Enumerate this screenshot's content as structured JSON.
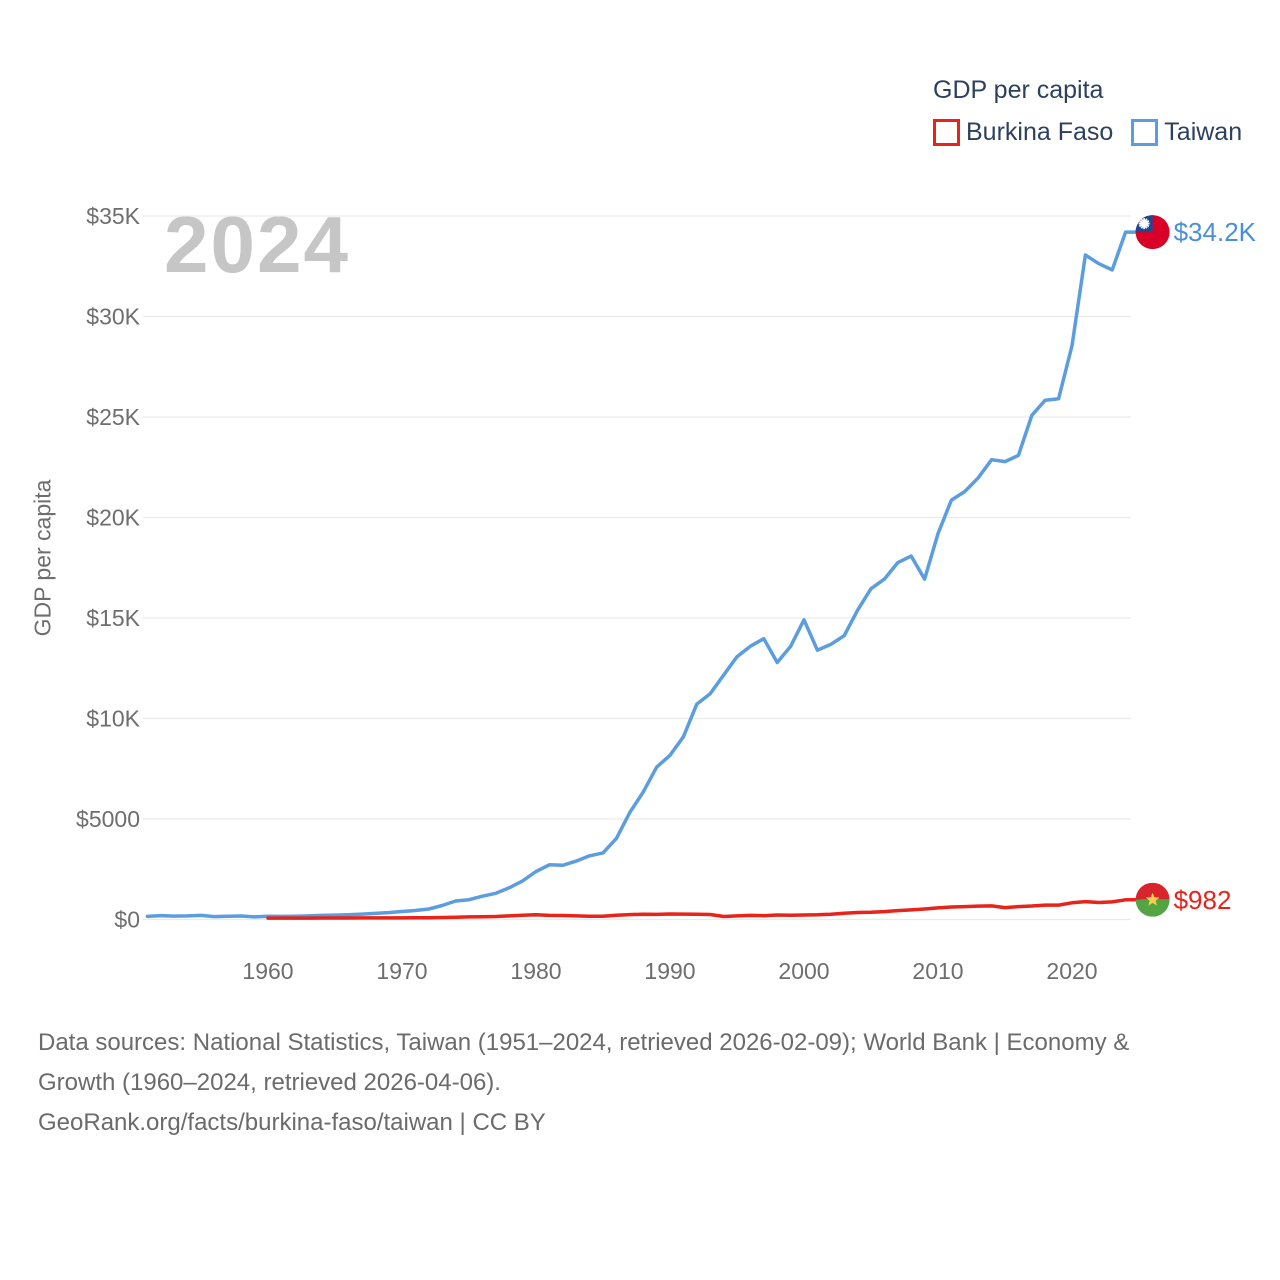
{
  "legend": {
    "title": "GDP per capita",
    "items": [
      {
        "label": "Burkina Faso",
        "color": "#e8231a"
      },
      {
        "label": "Taiwan",
        "color": "#5b9dde"
      }
    ]
  },
  "watermark": "2024",
  "y_axis": {
    "title": "GDP per capita"
  },
  "footer": {
    "line1": "Data sources: National Statistics, Taiwan (1951–2024, retrieved 2026-02-09); World Bank | Economy &",
    "line2": "Growth (1960–2024, retrieved 2026-04-06).",
    "line3": "GeoRank.org/facts/burkina-faso/taiwan | CC BY"
  },
  "chart_data": {
    "type": "line",
    "title": "GDP per capita",
    "xlabel": "",
    "ylabel": "GDP per capita",
    "x_range": [
      1951,
      2024
    ],
    "ylim": [
      0,
      35000
    ],
    "grid": "horizontal",
    "legend_position": "top-right",
    "y_ticks": [
      {
        "value": 0,
        "label": "$0"
      },
      {
        "value": 5000,
        "label": "$5000"
      },
      {
        "value": 10000,
        "label": "$10K"
      },
      {
        "value": 15000,
        "label": "$15K"
      },
      {
        "value": 20000,
        "label": "$20K"
      },
      {
        "value": 25000,
        "label": "$25K"
      },
      {
        "value": 30000,
        "label": "$30K"
      },
      {
        "value": 35000,
        "label": "$35K"
      }
    ],
    "x_ticks": [
      {
        "value": 1960,
        "label": "1960"
      },
      {
        "value": 1970,
        "label": "1970"
      },
      {
        "value": 1980,
        "label": "1980"
      },
      {
        "value": 1990,
        "label": "1990"
      },
      {
        "value": 2000,
        "label": "2000"
      },
      {
        "value": 2010,
        "label": "2010"
      },
      {
        "value": 2020,
        "label": "2020"
      }
    ],
    "series": [
      {
        "name": "Taiwan",
        "color": "#5b9dde",
        "label_color": "#4a90d9",
        "end_label": "$34.2K",
        "flag": "taiwan",
        "points": [
          [
            1951,
            154
          ],
          [
            1952,
            196
          ],
          [
            1953,
            167
          ],
          [
            1954,
            178
          ],
          [
            1955,
            203
          ],
          [
            1956,
            143
          ],
          [
            1957,
            160
          ],
          [
            1958,
            173
          ],
          [
            1959,
            131
          ],
          [
            1960,
            163
          ],
          [
            1961,
            152
          ],
          [
            1962,
            162
          ],
          [
            1963,
            178
          ],
          [
            1964,
            202
          ],
          [
            1965,
            217
          ],
          [
            1966,
            237
          ],
          [
            1967,
            267
          ],
          [
            1968,
            304
          ],
          [
            1969,
            345
          ],
          [
            1970,
            397
          ],
          [
            1971,
            450
          ],
          [
            1972,
            522
          ],
          [
            1973,
            695
          ],
          [
            1974,
            920
          ],
          [
            1975,
            985
          ],
          [
            1976,
            1158
          ],
          [
            1977,
            1301
          ],
          [
            1978,
            1577
          ],
          [
            1979,
            1920
          ],
          [
            1980,
            2389
          ],
          [
            1981,
            2720
          ],
          [
            1982,
            2699
          ],
          [
            1983,
            2903
          ],
          [
            1984,
            3167
          ],
          [
            1985,
            3315
          ],
          [
            1986,
            4036
          ],
          [
            1987,
            5325
          ],
          [
            1988,
            6338
          ],
          [
            1989,
            7575
          ],
          [
            1990,
            8167
          ],
          [
            1991,
            9092
          ],
          [
            1992,
            10715
          ],
          [
            1993,
            11236
          ],
          [
            1994,
            12160
          ],
          [
            1995,
            13076
          ],
          [
            1996,
            13597
          ],
          [
            1997,
            13968
          ],
          [
            1998,
            12787
          ],
          [
            1999,
            13585
          ],
          [
            2000,
            14908
          ],
          [
            2001,
            13397
          ],
          [
            2002,
            13686
          ],
          [
            2003,
            14120
          ],
          [
            2004,
            15388
          ],
          [
            2005,
            16456
          ],
          [
            2006,
            16934
          ],
          [
            2007,
            17757
          ],
          [
            2008,
            18081
          ],
          [
            2009,
            16933
          ],
          [
            2010,
            19197
          ],
          [
            2011,
            20866
          ],
          [
            2012,
            21295
          ],
          [
            2013,
            21973
          ],
          [
            2014,
            22874
          ],
          [
            2015,
            22780
          ],
          [
            2016,
            23091
          ],
          [
            2017,
            25080
          ],
          [
            2018,
            25838
          ],
          [
            2019,
            25908
          ],
          [
            2020,
            28549
          ],
          [
            2021,
            33059
          ],
          [
            2022,
            32625
          ],
          [
            2023,
            32319
          ],
          [
            2024,
            34200
          ]
        ]
      },
      {
        "name": "Burkina Faso",
        "color": "#e8231a",
        "label_color": "#e8231a",
        "end_label": "$982",
        "flag": "burkina-faso",
        "points": [
          [
            1960,
            68
          ],
          [
            1961,
            69
          ],
          [
            1962,
            71
          ],
          [
            1963,
            72
          ],
          [
            1964,
            74
          ],
          [
            1965,
            76
          ],
          [
            1966,
            77
          ],
          [
            1967,
            78
          ],
          [
            1968,
            79
          ],
          [
            1969,
            80
          ],
          [
            1970,
            79
          ],
          [
            1971,
            83
          ],
          [
            1972,
            91
          ],
          [
            1973,
            100
          ],
          [
            1974,
            112
          ],
          [
            1975,
            130
          ],
          [
            1976,
            134
          ],
          [
            1977,
            150
          ],
          [
            1978,
            180
          ],
          [
            1979,
            212
          ],
          [
            1980,
            234
          ],
          [
            1981,
            205
          ],
          [
            1982,
            197
          ],
          [
            1983,
            177
          ],
          [
            1984,
            161
          ],
          [
            1985,
            158
          ],
          [
            1986,
            211
          ],
          [
            1987,
            243
          ],
          [
            1988,
            263
          ],
          [
            1989,
            253
          ],
          [
            1990,
            275
          ],
          [
            1991,
            270
          ],
          [
            1992,
            264
          ],
          [
            1993,
            250
          ],
          [
            1994,
            151
          ],
          [
            1995,
            180
          ],
          [
            1996,
            203
          ],
          [
            1997,
            190
          ],
          [
            1998,
            222
          ],
          [
            1999,
            215
          ],
          [
            2000,
            226
          ],
          [
            2001,
            236
          ],
          [
            2002,
            257
          ],
          [
            2003,
            313
          ],
          [
            2004,
            350
          ],
          [
            2005,
            365
          ],
          [
            2006,
            391
          ],
          [
            2007,
            442
          ],
          [
            2008,
            480
          ],
          [
            2009,
            522
          ],
          [
            2010,
            575
          ],
          [
            2011,
            622
          ],
          [
            2012,
            642
          ],
          [
            2013,
            669
          ],
          [
            2014,
            675
          ],
          [
            2015,
            590
          ],
          [
            2016,
            640
          ],
          [
            2017,
            670
          ],
          [
            2018,
            715
          ],
          [
            2019,
            718
          ],
          [
            2020,
            830
          ],
          [
            2021,
            893
          ],
          [
            2022,
            847
          ],
          [
            2023,
            874
          ],
          [
            2024,
            982
          ]
        ]
      }
    ]
  }
}
